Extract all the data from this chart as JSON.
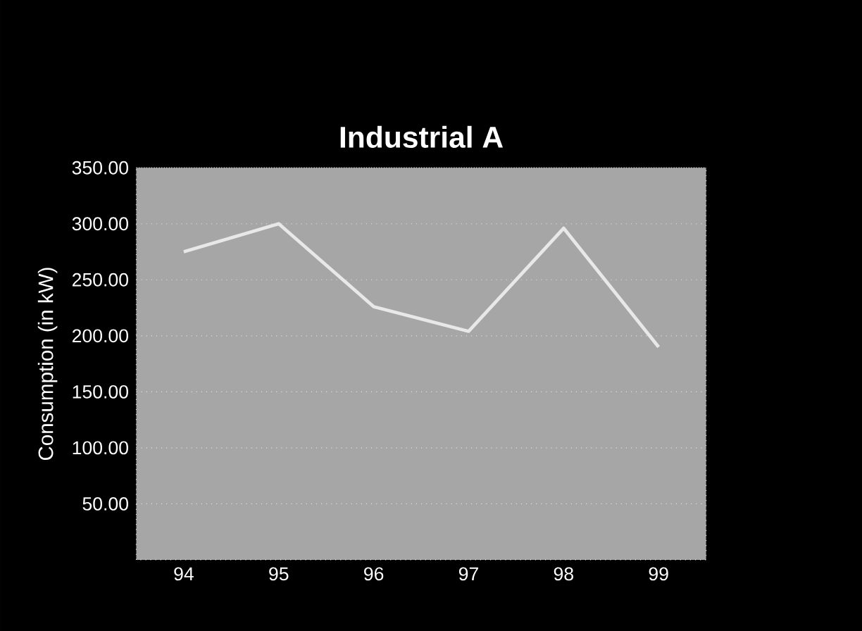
{
  "chart_data": {
    "type": "line",
    "title": "Industrial A",
    "ylabel": "Consumption (in kW)",
    "categories": [
      "94",
      "95",
      "96",
      "97",
      "98",
      "99"
    ],
    "series": [
      {
        "color": "#e8e8e8",
        "values": [
          275,
          300,
          226,
          204,
          296,
          190
        ]
      }
    ],
    "ylim": [
      0,
      350
    ],
    "yticks": [
      {
        "value": 50,
        "label": "50.00"
      },
      {
        "value": 100,
        "label": "100.00"
      },
      {
        "value": 150,
        "label": "150.00"
      },
      {
        "value": 200,
        "label": "200.00"
      },
      {
        "value": 250,
        "label": "250.00"
      },
      {
        "value": 300,
        "label": "300.00"
      },
      {
        "value": 350,
        "label": "350.00"
      }
    ],
    "grid": "y",
    "marker": "none",
    "line_style": "solid"
  }
}
